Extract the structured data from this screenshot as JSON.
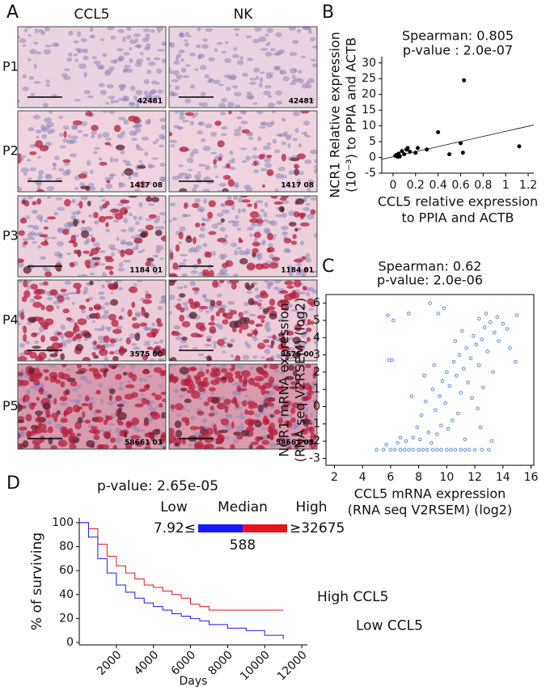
{
  "panel_labels": [
    "A",
    "B",
    "C",
    "D"
  ],
  "panel_a": {
    "columns": [
      "CCL5",
      "NK"
    ],
    "rows": [
      {
        "label": "P1",
        "ids": [
          "42481",
          "42481"
        ]
      },
      {
        "label": "P2",
        "ids": [
          "1417 08",
          "1417 08"
        ]
      },
      {
        "label": "P3",
        "ids": [
          "1184 01",
          "1184 01"
        ]
      },
      {
        "label": "P4",
        "ids": [
          "3575 00",
          "3575 00"
        ]
      },
      {
        "label": "P5",
        "ids": [
          "58661 03",
          "58661 03"
        ]
      }
    ]
  },
  "chart_data": [
    {
      "type": "scatter",
      "title": [
        "Spearman: 0.805",
        "p-value : 2.0e-07"
      ],
      "xlabel": [
        "CCL5 relative expression",
        "to PPIA and ACTB"
      ],
      "ylabel": [
        "NCR1 Relative expression",
        "(10⁻³) to PPIA and ACTB"
      ],
      "color": "#000000",
      "frame": false,
      "x": [
        0.02,
        0.03,
        0.05,
        0.06,
        0.08,
        0.1,
        0.12,
        0.13,
        0.2,
        0.22,
        0.3,
        0.4,
        0.5,
        0.6,
        0.62,
        0.63,
        1.12,
        0.04,
        0.15
      ],
      "values": [
        0.5,
        0.8,
        1.2,
        0.3,
        2,
        1,
        2.5,
        3,
        1.5,
        3,
        2.5,
        8,
        1,
        4.5,
        1.5,
        24.5,
        3.5,
        0.2,
        1.8
      ],
      "trendline": {
        "x": [
          -0.1,
          1.25
        ],
        "values": [
          -0.6,
          10.3
        ]
      },
      "xlim": [
        -0.1,
        1.25
      ],
      "ylim": [
        -5,
        32
      ],
      "xticks": [
        0,
        0.2,
        0.4,
        0.6,
        0.8,
        1,
        1.2
      ],
      "yticks": [
        -5,
        0,
        5,
        10,
        15,
        20,
        25,
        30
      ]
    },
    {
      "type": "scatter",
      "title": [
        "Spearman: 0.62",
        "p-value: 2.0e-06"
      ],
      "xlabel": [
        "CCL5 mRNA expression",
        "(RNA seq V2RSEM) (log2)"
      ],
      "ylabel": [
        "NCR1 mRNA expression",
        "(RNA seq V2RSEM) (log2)"
      ],
      "color": "#5b8fd6",
      "frame": true,
      "x": [
        5,
        5.5,
        6,
        6.3,
        6.7,
        7,
        7.3,
        7.6,
        8,
        8.3,
        8.6,
        9,
        9.3,
        9.6,
        10,
        10.3,
        10.6,
        11,
        11.3,
        11.6,
        12,
        12.5,
        13,
        5.8,
        6.2,
        7.3,
        8.8,
        9.4,
        9.8,
        12.3,
        12.8,
        13.6,
        6.1,
        5.9,
        7.9,
        8.2,
        8.5,
        8.7,
        9,
        9.2,
        9.5,
        9.7,
        9.9,
        10,
        10.2,
        10.4,
        10.5,
        10.7,
        10.9,
        11,
        11.2,
        11.4,
        11.5,
        11.7,
        11.9,
        12.1,
        12.3,
        12.5,
        12.7,
        12.9,
        13.1,
        13.4,
        13.7,
        14,
        14.3,
        14.5,
        14.9,
        15,
        7.1,
        7.6,
        8.1,
        8.9,
        9.3,
        9.6,
        10.1,
        10.8,
        11.3,
        11.8,
        12.2,
        12.6,
        13.3,
        6.7,
        7.5,
        8.4,
        9.1,
        10.6,
        11.1,
        12.4,
        13.2,
        6.5,
        5.7
      ],
      "values": [
        -2.5,
        -2.5,
        -2.5,
        -2.5,
        -2.5,
        -2.5,
        -2.5,
        -2.5,
        -2.5,
        -2.5,
        -2.5,
        -2.5,
        -2.5,
        -2.5,
        -2.5,
        -2.5,
        -2.5,
        -2.5,
        -2.5,
        -2.5,
        -2.5,
        -2.5,
        -2.5,
        5.3,
        5,
        5.4,
        6,
        5.4,
        5.7,
        5.1,
        5.4,
        5.2,
        2.7,
        2.7,
        -1.2,
        -0.5,
        0.3,
        -1.5,
        1,
        -0.2,
        0.6,
        1.5,
        0.2,
        2,
        1.2,
        -0.8,
        2.6,
        1.8,
        3,
        0.8,
        2.2,
        3.4,
        1.4,
        2.8,
        4.1,
        3.6,
        2.4,
        3.9,
        4.6,
        3.2,
        4.9,
        4.3,
        3.8,
        4.8,
        4.5,
        3.4,
        2.6,
        5.3,
        -2,
        -1.8,
        -1.9,
        -2.1,
        -1.6,
        -1.1,
        -1.3,
        -0.4,
        -1.9,
        0.5,
        -0.1,
        1.1,
        2,
        -1.8,
        0.6,
        1.8,
        2.4,
        3.8,
        4.4,
        -1.2,
        -2,
        -2.1,
        -2.2
      ],
      "xlim": [
        1.4,
        16.2
      ],
      "ylim": [
        -3.4,
        6.5
      ],
      "xticks": [
        2,
        4,
        6,
        8,
        10,
        12,
        14,
        16
      ],
      "yticks": [
        -3,
        -2,
        -1,
        0,
        1,
        2,
        3,
        4,
        5,
        6
      ]
    },
    {
      "type": "line",
      "step": true,
      "title": "p-value: 2.65e-05",
      "xlabel": "Days",
      "ylabel": "% of surviving",
      "colorbar": {
        "labels": [
          "Low",
          "Median",
          "High"
        ],
        "min_label": "7.92≤",
        "max_label": "≥32675",
        "median_label": "588",
        "colors": [
          "#1a1aff",
          "#e8141c"
        ]
      },
      "series": [
        {
          "name": "High CCL5",
          "color": "#e8141c",
          "x": [
            0,
            500,
            1000,
            1500,
            2000,
            2500,
            3000,
            3500,
            4000,
            4500,
            5000,
            5500,
            6000,
            6500,
            7000,
            8000,
            9000,
            10000,
            11000
          ],
          "values": [
            100,
            95,
            82,
            72,
            64,
            58,
            53,
            48,
            46,
            43,
            40,
            37,
            32,
            30,
            27,
            27,
            27,
            27,
            27
          ]
        },
        {
          "name": "Low CCL5",
          "color": "#1a1aff",
          "x": [
            0,
            500,
            1000,
            1500,
            2000,
            2500,
            3000,
            3500,
            4000,
            4500,
            5000,
            5500,
            6000,
            6500,
            7000,
            8000,
            9000,
            10000,
            11000
          ],
          "values": [
            100,
            88,
            70,
            58,
            48,
            42,
            37,
            33,
            30,
            27,
            24,
            22,
            20,
            18,
            15,
            12,
            10,
            6,
            3
          ]
        }
      ],
      "xlim": [
        0,
        12300
      ],
      "ylim": [
        -2,
        104
      ],
      "xticks": [
        2000,
        4000,
        6000,
        8000,
        10000,
        12000
      ],
      "yticks": [
        0,
        20,
        40,
        60,
        80,
        100
      ]
    }
  ]
}
